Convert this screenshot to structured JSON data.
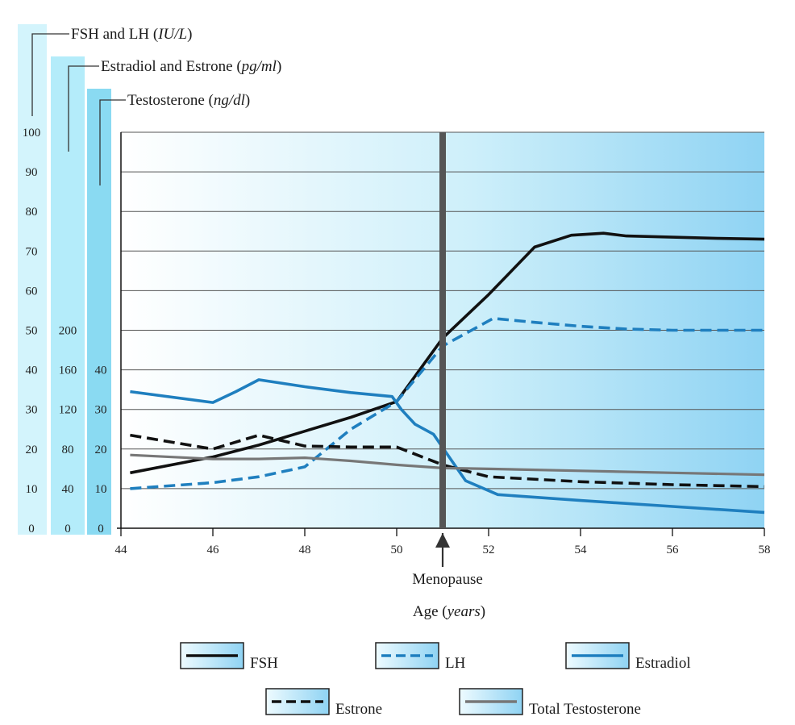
{
  "chart_data": {
    "type": "line",
    "axis_titles": [
      {
        "label": "FSH and LH",
        "unit": "IU/L",
        "ticks": [
          "100",
          "90",
          "80",
          "70",
          "60",
          "50",
          "40",
          "30",
          "20",
          "10",
          "0"
        ]
      },
      {
        "label": "Estradiol and Estrone",
        "unit": "pg/ml",
        "ticks": [
          "200",
          "160",
          "120",
          "80",
          "40",
          "0"
        ]
      },
      {
        "label": "Testosterone",
        "unit": "ng/dl",
        "ticks": [
          "40",
          "30",
          "20",
          "10",
          "0"
        ]
      }
    ],
    "xlabel": "Age",
    "xunit": "years",
    "xlim": [
      44,
      58
    ],
    "xticks": [
      "44",
      "46",
      "48",
      "50",
      "52",
      "54",
      "56",
      "58"
    ],
    "ylim": [
      0,
      100
    ],
    "grid": true,
    "annotation": {
      "label": "Menopause",
      "x": 51
    },
    "series": [
      {
        "name": "FSH",
        "axis": "FSH and LH",
        "color": "#111111",
        "style": "solid",
        "x": [
          44.2,
          46,
          47,
          48,
          49,
          50,
          51,
          52,
          53,
          53.8,
          54.5,
          55,
          56,
          57,
          58
        ],
        "y": [
          14,
          18,
          21,
          24.5,
          28,
          32,
          48,
          59,
          71,
          74,
          74.5,
          73.8,
          73.5,
          73.2,
          73
        ]
      },
      {
        "name": "LH",
        "axis": "FSH and LH",
        "color": "#1f7fbf",
        "style": "dashed",
        "x": [
          44.2,
          46,
          47,
          48,
          49,
          50,
          51,
          52.1,
          53,
          54,
          55,
          56,
          57,
          58
        ],
        "y": [
          10,
          11.5,
          13,
          15.5,
          25,
          32,
          46,
          53,
          52,
          51,
          50.3,
          50,
          50,
          50
        ]
      },
      {
        "name": "Estradiol",
        "axis": "Estradiol and Estrone",
        "color": "#1f7fbf",
        "style": "solid",
        "x": [
          44.2,
          46,
          46.5,
          47,
          48,
          49,
          49.9,
          50.1,
          50.4,
          50.8,
          51.2,
          51.5,
          52.2,
          54,
          56,
          58
        ],
        "y": [
          138,
          127,
          138,
          150,
          143,
          137,
          133,
          120,
          105,
          95,
          68,
          48,
          34,
          28,
          22,
          16
        ]
      },
      {
        "name": "Estrone",
        "axis": "Estradiol and Estrone",
        "color": "#111111",
        "style": "dashed",
        "x": [
          44.2,
          46,
          47,
          48,
          49,
          50,
          51,
          52,
          54,
          56,
          58
        ],
        "y": [
          94,
          80,
          94,
          83,
          82,
          82,
          64,
          52,
          47,
          44,
          42
        ]
      },
      {
        "name": "Total Testosterone",
        "axis": "Testosterone",
        "color": "#777777",
        "style": "solid",
        "x": [
          44.2,
          46,
          47,
          48,
          49,
          50,
          51,
          52,
          54,
          56,
          58
        ],
        "y": [
          18.5,
          17.5,
          17.5,
          17.8,
          17,
          16,
          15.2,
          15,
          14.5,
          14,
          13.5
        ]
      }
    ],
    "legend": [
      {
        "label": "FSH",
        "series": 0
      },
      {
        "label": "LH",
        "series": 1
      },
      {
        "label": "Estradiol",
        "series": 2
      },
      {
        "label": "Estrone",
        "series": 3
      },
      {
        "label": "Total Testosterone",
        "series": 4
      }
    ],
    "colors": {
      "plot_left": "#ffffff",
      "plot_mid": "#cdeffa",
      "plot_right": "#8fd3f3",
      "band_1": "#d3f4fc",
      "band_2": "#b4ecfa",
      "band_3": "#8adaf2",
      "grid": "#555555",
      "menopause_bar": "#555555"
    }
  }
}
